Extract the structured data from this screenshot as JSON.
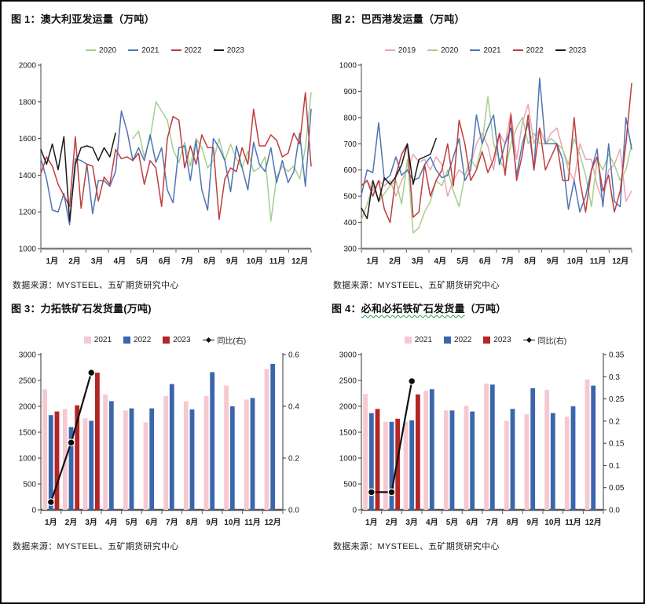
{
  "page": {
    "background": "#ffffff",
    "frame_color": "#0a0a0a"
  },
  "chart_data": [
    {
      "id": "fig1",
      "type": "line",
      "title_prefix": "图 1：",
      "title_main": "澳大利亚发运量",
      "title_suffix": "（万吨）",
      "source": "数据来源：MYSTEEL、五矿期货研究中心",
      "xlabel": "",
      "ylabel": "",
      "ylim": [
        1000,
        2000
      ],
      "yticks": [
        [
          2000,
          "2000"
        ],
        [
          1800,
          "1800"
        ],
        [
          1600,
          "1600"
        ],
        [
          1400,
          "1400"
        ],
        [
          1200,
          "1200"
        ],
        [
          1000,
          "1000"
        ]
      ],
      "months": [
        "1月",
        "2月",
        "3月",
        "4月",
        "5月",
        "6月",
        "7月",
        "8月",
        "9月",
        "10月",
        "11月",
        "12月"
      ],
      "weeks": 48,
      "grid": false,
      "legend_position": "top",
      "series": [
        {
          "name": "2020",
          "color": "#a6ce90",
          "offset": 16,
          "values": [
            1600,
            1640,
            1500,
            1600,
            1800,
            1750,
            1700,
            1540,
            1470,
            1580,
            1450,
            1600,
            1550,
            1440,
            1480,
            1600,
            1480,
            1570,
            1490,
            1440,
            1530,
            1420,
            1440,
            1500,
            1150,
            1390,
            1450,
            1420,
            1450,
            1380,
            1550,
            1850
          ]
        },
        {
          "name": "2021",
          "color": "#4f74b3",
          "offset": 0,
          "values": [
            1490,
            1380,
            1210,
            1200,
            1300,
            1130,
            1490,
            1480,
            1460,
            1190,
            1370,
            1370,
            1340,
            1420,
            1750,
            1640,
            1480,
            1550,
            1480,
            1620,
            1470,
            1550,
            1320,
            1250,
            1550,
            1560,
            1370,
            1590,
            1320,
            1210,
            1600,
            1550,
            1480,
            1310,
            1560,
            1440,
            1320,
            1580,
            1460,
            1420,
            1550,
            1360,
            1480,
            1360,
            1420,
            1630,
            1340,
            1760
          ]
        },
        {
          "name": "2022",
          "color": "#be3d3d",
          "offset": 0,
          "values": [
            1410,
            1500,
            1450,
            1350,
            1290,
            1230,
            1610,
            1220,
            1460,
            1450,
            1260,
            1390,
            1350,
            1540,
            1490,
            1500,
            1480,
            1520,
            1350,
            1480,
            1440,
            1230,
            1600,
            1720,
            1700,
            1440,
            1560,
            1460,
            1620,
            1550,
            1550,
            1160,
            1380,
            1440,
            1420,
            1550,
            1460,
            1760,
            1560,
            1560,
            1620,
            1590,
            1500,
            1520,
            1630,
            1570,
            1850,
            1450
          ]
        },
        {
          "name": "2023",
          "color": "#1a1a1a",
          "offset": 0,
          "values": [
            1540,
            1460,
            1570,
            1430,
            1610,
            1150,
            1460,
            1550,
            1560,
            1550,
            1480,
            1550,
            1500,
            1630
          ]
        }
      ]
    },
    {
      "id": "fig2",
      "type": "line",
      "title_prefix": "图 2：",
      "title_main": "巴西港发运量",
      "title_suffix": "（万吨）",
      "source": "数据来源：MYSTEEL、五矿期货研究中心",
      "xlabel": "",
      "ylabel": "",
      "ylim": [
        300,
        1000
      ],
      "yticks": [
        [
          1000,
          "1000"
        ],
        [
          900,
          "900"
        ],
        [
          800,
          "800"
        ],
        [
          700,
          "700"
        ],
        [
          600,
          "600"
        ],
        [
          500,
          "500"
        ],
        [
          400,
          "400"
        ],
        [
          300,
          "300"
        ]
      ],
      "months": [
        "1月",
        "2月",
        "3月",
        "4月",
        "5月",
        "6月",
        "7月",
        "8月",
        "9月",
        "10月",
        "11月",
        "12月"
      ],
      "weeks": 48,
      "grid": false,
      "legend_position": "top",
      "series": [
        {
          "name": "2019",
          "color": "#e9a6b0",
          "offset": 0,
          "values": [
            540,
            560,
            520,
            560,
            540,
            560,
            500,
            560,
            600,
            660,
            630,
            640,
            600,
            650,
            620,
            500,
            560,
            600,
            580,
            620,
            700,
            740,
            690,
            600,
            740,
            700,
            820,
            640,
            780,
            850,
            700,
            760,
            700,
            740,
            760,
            680,
            600,
            560,
            700,
            640,
            640,
            540,
            480,
            600,
            620,
            680,
            480,
            520
          ]
        },
        {
          "name": "2020",
          "color": "#a6ce90",
          "offset": 0,
          "values": [
            410,
            470,
            540,
            480,
            510,
            540,
            560,
            470,
            640,
            360,
            380,
            440,
            480,
            560,
            540,
            600,
            520,
            460,
            580,
            640,
            610,
            700,
            880,
            700,
            640,
            600,
            700,
            760,
            800,
            700,
            740,
            700,
            700,
            720,
            700,
            680,
            620,
            720,
            660,
            580,
            460,
            640,
            600,
            660,
            620,
            560,
            600,
            700
          ]
        },
        {
          "name": "2021",
          "color": "#4f74b3",
          "offset": 0,
          "values": [
            505,
            600,
            590,
            780,
            560,
            580,
            650,
            580,
            600,
            560,
            570,
            620,
            650,
            600,
            570,
            580,
            650,
            720,
            560,
            600,
            810,
            700,
            760,
            810,
            620,
            700,
            760,
            580,
            700,
            780,
            600,
            950,
            700,
            700,
            700,
            640,
            450,
            560,
            440,
            500,
            600,
            680,
            460,
            700,
            480,
            460,
            800,
            680
          ]
        },
        {
          "name": "2022",
          "color": "#be3d3d",
          "offset": 0,
          "values": [
            540,
            560,
            500,
            560,
            450,
            400,
            580,
            660,
            700,
            420,
            440,
            620,
            500,
            560,
            600,
            700,
            540,
            790,
            700,
            560,
            600,
            670,
            590,
            640,
            740,
            580,
            810,
            560,
            660,
            810,
            600,
            760,
            600,
            650,
            700,
            560,
            560,
            800,
            560,
            440,
            600,
            650,
            520,
            580,
            440,
            520,
            700,
            930
          ]
        },
        {
          "name": "2023",
          "color": "#1a1a1a",
          "offset": 0,
          "values": [
            455,
            415,
            560,
            480,
            570,
            545,
            575,
            620,
            700,
            545,
            640,
            650,
            660,
            720
          ]
        }
      ]
    },
    {
      "id": "fig3",
      "type": "bar-line",
      "title_prefix": "图 3：",
      "title_main": "力拓铁矿石发货量",
      "title_suffix": "(万吨)",
      "source": "数据来源：MYSTEEL、五矿期货研究中心",
      "categories": [
        "1月",
        "2月",
        "3月",
        "4月",
        "5月",
        "6月",
        "7月",
        "8月",
        "9月",
        "10月",
        "11月",
        "12月"
      ],
      "ylim_left": [
        0,
        3000
      ],
      "yticks_left": [
        [
          3000,
          "3000"
        ],
        [
          2500,
          "2500"
        ],
        [
          2000,
          "2000"
        ],
        [
          1500,
          "1500"
        ],
        [
          1000,
          "1000"
        ],
        [
          500,
          "500"
        ],
        [
          0,
          "0"
        ]
      ],
      "ylim_right": [
        0,
        0.6
      ],
      "yticks_right": [
        [
          0.6,
          "0.6"
        ],
        [
          0.4,
          "0.4"
        ],
        [
          0.2,
          "0.2"
        ],
        [
          0.0,
          "0.0"
        ]
      ],
      "grid": false,
      "legend_position": "top",
      "series": [
        {
          "name": "2021",
          "color": "#f6c9d0",
          "values": [
            2330,
            1950,
            1770,
            2230,
            1920,
            1690,
            2200,
            2100,
            2200,
            2400,
            2130,
            2720
          ]
        },
        {
          "name": "2022",
          "color": "#3b66ad",
          "values": [
            1830,
            1600,
            1720,
            2100,
            1960,
            1960,
            2430,
            1940,
            2660,
            2000,
            2160,
            2820
          ]
        },
        {
          "name": "2023",
          "color": "#b42525",
          "values": [
            1900,
            2020,
            2650,
            null,
            null,
            null,
            null,
            null,
            null,
            null,
            null,
            null
          ]
        }
      ],
      "line_series": {
        "name": "同比(右)",
        "color": "#111111",
        "axis": "right",
        "values": [
          0.03,
          0.26,
          0.53,
          null,
          null,
          null,
          null,
          null,
          null,
          null,
          null,
          null
        ]
      }
    },
    {
      "id": "fig4",
      "type": "bar-line",
      "title_prefix": "图 4：",
      "title_main": "必和必拓铁矿石发货量",
      "title_suffix": "（万吨）",
      "source": "数据来源：MYSTEEL、五矿期货研究中心",
      "categories": [
        "1月",
        "2月",
        "3月",
        "4月",
        "5月",
        "6月",
        "7月",
        "8月",
        "9月",
        "10月",
        "11月",
        "12月"
      ],
      "ylim_left": [
        0,
        3000
      ],
      "yticks_left": [
        [
          3000,
          "3000"
        ],
        [
          2500,
          "2500"
        ],
        [
          2000,
          "2000"
        ],
        [
          1500,
          "1500"
        ],
        [
          1000,
          "1000"
        ],
        [
          500,
          "500"
        ],
        [
          0,
          "0"
        ]
      ],
      "ylim_right": [
        0,
        0.35
      ],
      "yticks_right": [
        [
          0.35,
          "0.35"
        ],
        [
          0.3,
          "0.3"
        ],
        [
          0.25,
          "0.25"
        ],
        [
          0.2,
          "0.2"
        ],
        [
          0.15,
          "0.15"
        ],
        [
          0.1,
          "0.1"
        ],
        [
          0.05,
          "0.05"
        ],
        [
          0.0,
          "0.0"
        ]
      ],
      "grid": false,
      "legend_position": "top",
      "series": [
        {
          "name": "2021",
          "color": "#f6c9d0",
          "values": [
            2240,
            1700,
            1700,
            2300,
            1920,
            2010,
            2440,
            1720,
            1850,
            2320,
            1800,
            2520
          ]
        },
        {
          "name": "2022",
          "color": "#3b66ad",
          "values": [
            1870,
            1700,
            1730,
            2330,
            1920,
            1900,
            2420,
            1950,
            2350,
            1870,
            2000,
            2400
          ]
        },
        {
          "name": "2023",
          "color": "#b42525",
          "values": [
            1950,
            1760,
            2230,
            null,
            null,
            null,
            null,
            null,
            null,
            null,
            null,
            null
          ]
        }
      ],
      "line_series": {
        "name": "同比(右)",
        "color": "#111111",
        "axis": "right",
        "values": [
          0.04,
          0.04,
          0.29,
          null,
          null,
          null,
          null,
          null,
          null,
          null,
          null,
          null
        ]
      }
    }
  ]
}
